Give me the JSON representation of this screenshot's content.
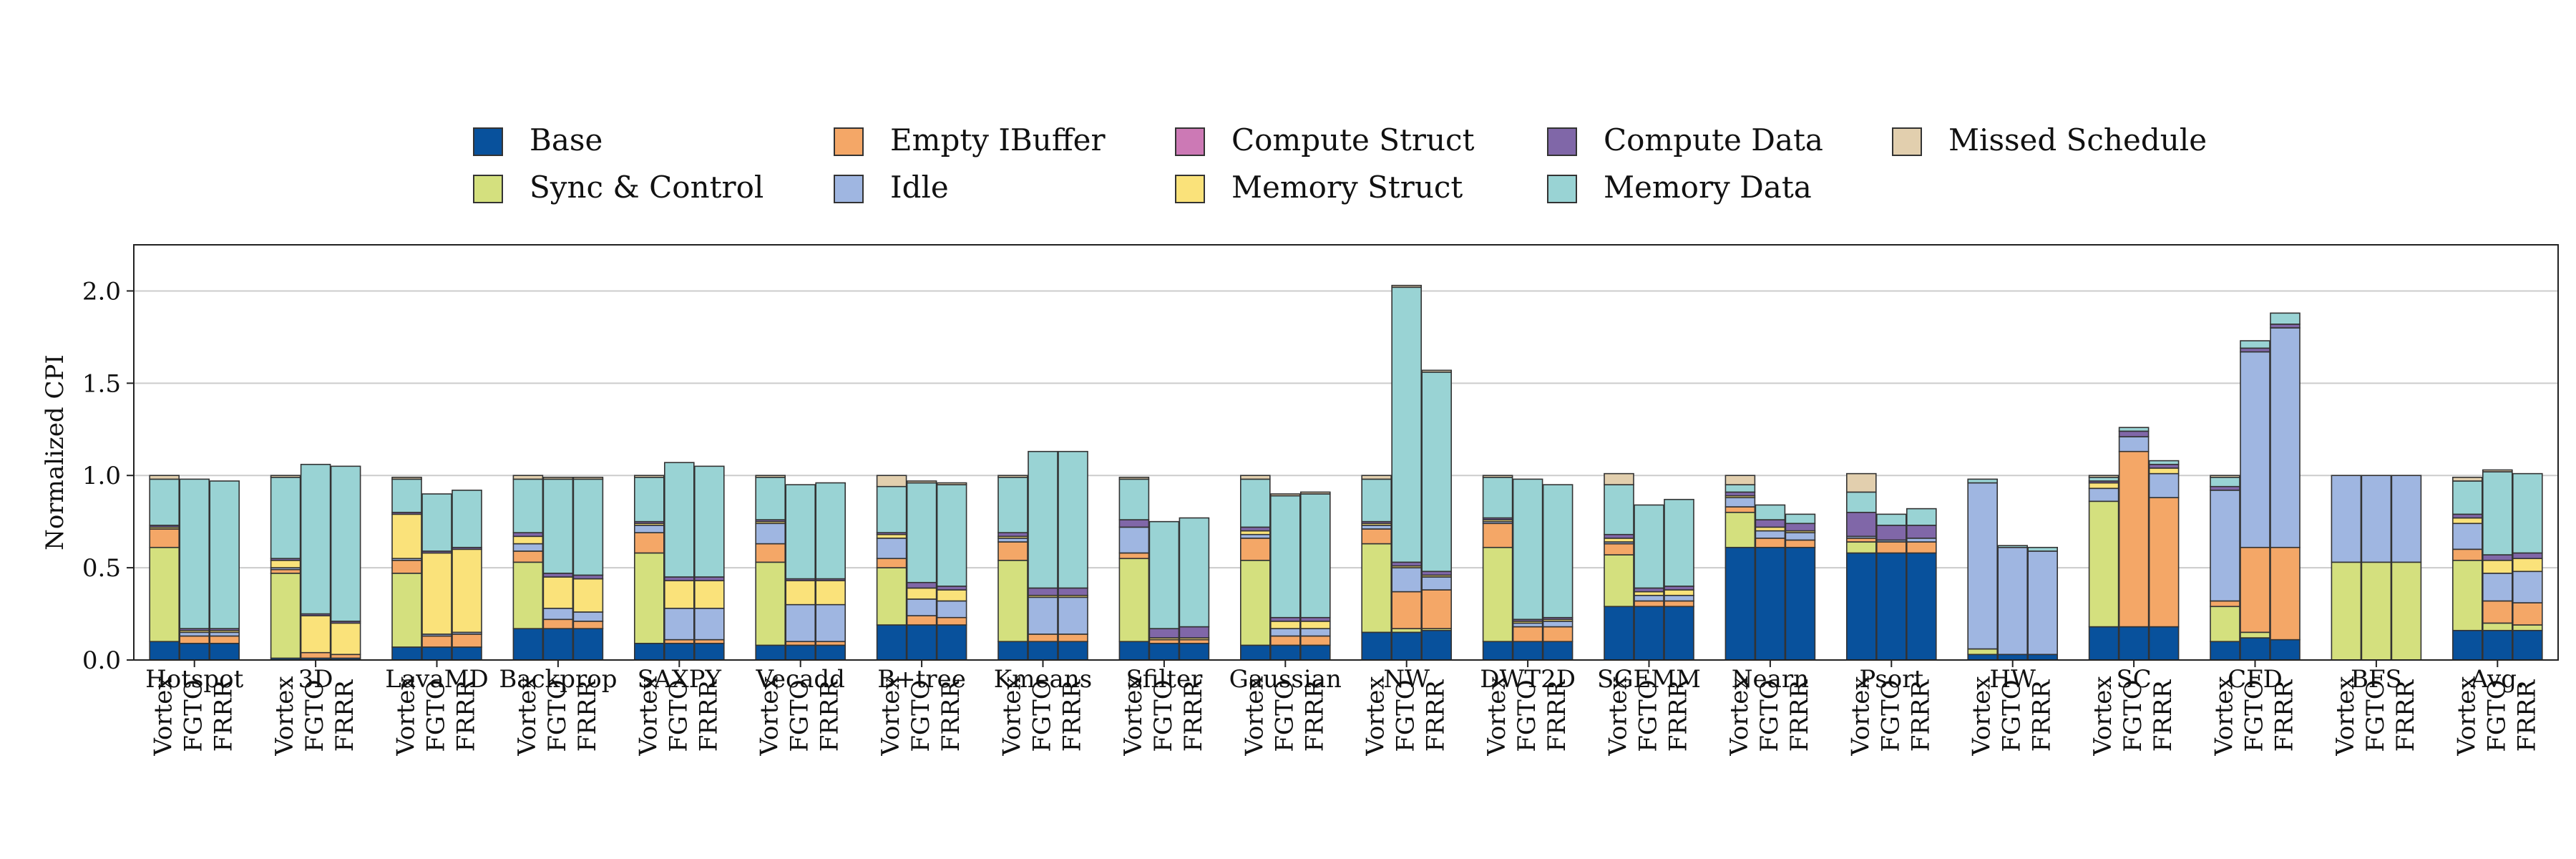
{
  "chart_data": {
    "type": "bar",
    "stacked": true,
    "ylabel": "Normalized CPI",
    "ylim": [
      0,
      2.25
    ],
    "yticks": [
      0.0,
      0.5,
      1.0,
      1.5,
      2.0
    ],
    "ytick_labels": [
      "0.0",
      "0.5",
      "1.0",
      "1.5",
      "2.0"
    ],
    "grid": "horizontal",
    "legend_position": "top",
    "schedulers": [
      "Vortex",
      "FGTO",
      "FRRR"
    ],
    "categories": [
      "Hotspot",
      "3D",
      "LavaMD",
      "Backprop",
      "SAXPY",
      "Vecadd",
      "B+tree",
      "Kmeans",
      "Sfilter",
      "Gaussian",
      "NW",
      "DWT2D",
      "SGEMM",
      "Nearn",
      "Psort",
      "HW",
      "SC",
      "CFD",
      "BFS",
      "Avg."
    ],
    "series_names": [
      "Base",
      "Sync & Control",
      "Empty IBuffer",
      "Idle",
      "Compute Struct",
      "Memory Struct",
      "Compute Data",
      "Memory Data",
      "Missed Schedule"
    ],
    "series_colors": [
      "#08519c",
      "#d4e07e",
      "#f4a767",
      "#9fb6e1",
      "#cc79b5",
      "#fae27a",
      "#8067a8",
      "#99d3d4",
      "#e2cfae"
    ],
    "legend": [
      {
        "name": "Base",
        "color": "#08519c"
      },
      {
        "name": "Empty IBuffer",
        "color": "#f4a767"
      },
      {
        "name": "Compute Struct",
        "color": "#cc79b5"
      },
      {
        "name": "Compute Data",
        "color": "#8067a8"
      },
      {
        "name": "Missed Schedule",
        "color": "#e2cfae"
      },
      {
        "name": "Sync & Control",
        "color": "#d4e07e"
      },
      {
        "name": "Idle",
        "color": "#9fb6e1"
      },
      {
        "name": "Memory Struct",
        "color": "#fae27a"
      },
      {
        "name": "Memory Data",
        "color": "#99d3d4"
      }
    ],
    "values": {
      "Hotspot": [
        [
          0.1,
          0.51,
          0.1,
          0,
          0,
          0.01,
          0.01,
          0.25,
          0.02
        ],
        [
          0.09,
          0,
          0.04,
          0.02,
          0,
          0.01,
          0.01,
          0.81,
          0
        ],
        [
          0.09,
          0,
          0.04,
          0.02,
          0,
          0.01,
          0.01,
          0.8,
          0
        ]
      ],
      "3D": [
        [
          0.01,
          0.46,
          0.02,
          0.01,
          0,
          0.04,
          0.01,
          0.44,
          0.01
        ],
        [
          0.01,
          0,
          0.03,
          0,
          0,
          0.2,
          0.01,
          0.81,
          0
        ],
        [
          0.01,
          0,
          0.02,
          0,
          0,
          0.17,
          0.01,
          0.84,
          0
        ]
      ],
      "LavaMD": [
        [
          0.07,
          0.4,
          0.07,
          0.01,
          0,
          0.24,
          0.01,
          0.18,
          0.01
        ],
        [
          0.07,
          0,
          0.06,
          0.01,
          0,
          0.44,
          0.01,
          0.31,
          0
        ],
        [
          0.07,
          0,
          0.07,
          0.01,
          0,
          0.45,
          0.01,
          0.31,
          0
        ]
      ],
      "Backprop": [
        [
          0.17,
          0.36,
          0.06,
          0.04,
          0,
          0.04,
          0.02,
          0.29,
          0.02
        ],
        [
          0.17,
          0,
          0.05,
          0.06,
          0,
          0.17,
          0.02,
          0.51,
          0.01
        ],
        [
          0.17,
          0,
          0.04,
          0.05,
          0,
          0.18,
          0.02,
          0.52,
          0.01
        ]
      ],
      "SAXPY": [
        [
          0.09,
          0.49,
          0.11,
          0.04,
          0,
          0.01,
          0.01,
          0.24,
          0.01
        ],
        [
          0.09,
          0,
          0.02,
          0.17,
          0,
          0.15,
          0.02,
          0.62,
          0
        ],
        [
          0.09,
          0,
          0.02,
          0.17,
          0,
          0.15,
          0.02,
          0.6,
          0
        ]
      ],
      "Vecadd": [
        [
          0.08,
          0.45,
          0.1,
          0.11,
          0,
          0.01,
          0.01,
          0.23,
          0.01
        ],
        [
          0.08,
          0,
          0.02,
          0.2,
          0,
          0.13,
          0.01,
          0.51,
          0
        ],
        [
          0.08,
          0,
          0.02,
          0.2,
          0,
          0.13,
          0.01,
          0.52,
          0
        ]
      ],
      "B+tree": [
        [
          0.19,
          0.31,
          0.05,
          0.11,
          0,
          0.02,
          0.01,
          0.25,
          0.06
        ],
        [
          0.19,
          0,
          0.05,
          0.09,
          0,
          0.06,
          0.03,
          0.54,
          0.01
        ],
        [
          0.19,
          0,
          0.04,
          0.09,
          0,
          0.06,
          0.02,
          0.55,
          0.01
        ]
      ],
      "Kmeans": [
        [
          0.1,
          0.44,
          0.1,
          0.02,
          0,
          0.01,
          0.02,
          0.3,
          0.01
        ],
        [
          0.1,
          0,
          0.04,
          0.2,
          0,
          0.01,
          0.04,
          0.74,
          0
        ],
        [
          0.1,
          0,
          0.04,
          0.2,
          0,
          0.01,
          0.04,
          0.74,
          0
        ]
      ],
      "Sfilter": [
        [
          0.1,
          0.45,
          0.03,
          0.14,
          0,
          0,
          0.04,
          0.22,
          0.01
        ],
        [
          0.09,
          0,
          0.02,
          0,
          0,
          0.01,
          0.05,
          0.58,
          0
        ],
        [
          0.09,
          0,
          0.02,
          0,
          0,
          0.01,
          0.06,
          0.59,
          0
        ]
      ],
      "Gaussian": [
        [
          0.08,
          0.46,
          0.12,
          0.02,
          0,
          0.02,
          0.02,
          0.26,
          0.02
        ],
        [
          0.08,
          0,
          0.05,
          0.04,
          0,
          0.04,
          0.02,
          0.66,
          0.01
        ],
        [
          0.08,
          0,
          0.05,
          0.04,
          0,
          0.04,
          0.02,
          0.67,
          0.01
        ]
      ],
      "NW": [
        [
          0.15,
          0.48,
          0.08,
          0.02,
          0,
          0.01,
          0.01,
          0.23,
          0.02
        ],
        [
          0.15,
          0.02,
          0.2,
          0.13,
          0,
          0.01,
          0.02,
          1.49,
          0.01
        ],
        [
          0.16,
          0.01,
          0.21,
          0.07,
          0,
          0.01,
          0.02,
          1.08,
          0.01
        ]
      ],
      "DWT2D": [
        [
          0.1,
          0.51,
          0.13,
          0.01,
          0,
          0.01,
          0.01,
          0.22,
          0.01
        ],
        [
          0.1,
          0,
          0.08,
          0.02,
          0,
          0.01,
          0.01,
          0.76,
          0
        ],
        [
          0.1,
          0,
          0.08,
          0.03,
          0,
          0.01,
          0.01,
          0.72,
          0
        ]
      ],
      "SGEMM": [
        [
          0.29,
          0.28,
          0.06,
          0.01,
          0,
          0.02,
          0.02,
          0.27,
          0.06
        ],
        [
          0.29,
          0,
          0.03,
          0.03,
          0,
          0.02,
          0.02,
          0.45,
          0
        ],
        [
          0.29,
          0,
          0.03,
          0.03,
          0,
          0.03,
          0.02,
          0.47,
          0
        ]
      ],
      "Nearn": [
        [
          0.61,
          0.19,
          0.03,
          0.05,
          0,
          0.01,
          0.02,
          0.04,
          0.05
        ],
        [
          0.61,
          0,
          0.05,
          0.04,
          0,
          0.02,
          0.04,
          0.08,
          0
        ],
        [
          0.61,
          0,
          0.04,
          0.04,
          0,
          0.01,
          0.04,
          0.05,
          0
        ]
      ],
      "Psort": [
        [
          0.58,
          0.06,
          0.02,
          0.01,
          0,
          0,
          0.13,
          0.11,
          0.1
        ],
        [
          0.58,
          0,
          0.06,
          0.01,
          0,
          0,
          0.08,
          0.06,
          0
        ],
        [
          0.58,
          0,
          0.06,
          0.02,
          0,
          0,
          0.07,
          0.09,
          0
        ]
      ],
      "HW": [
        [
          0.03,
          0.03,
          0,
          0.9,
          0,
          0,
          0,
          0.02,
          0
        ],
        [
          0.03,
          0,
          0,
          0.58,
          0,
          0,
          0,
          0.01,
          0
        ],
        [
          0.03,
          0,
          0,
          0.56,
          0,
          0,
          0,
          0.02,
          0
        ]
      ],
      "SC": [
        [
          0.18,
          0.68,
          0,
          0.07,
          0,
          0.03,
          0.01,
          0.02,
          0.01
        ],
        [
          0.18,
          0,
          0.95,
          0.08,
          0,
          0,
          0.03,
          0.02,
          0
        ],
        [
          0.18,
          0,
          0.7,
          0.13,
          0,
          0.03,
          0.02,
          0.02,
          0
        ]
      ],
      "CFD": [
        [
          0.1,
          0.19,
          0.03,
          0.6,
          0,
          0,
          0.02,
          0.05,
          0.01
        ],
        [
          0.12,
          0.03,
          0.46,
          1.06,
          0,
          0,
          0.02,
          0.04,
          0
        ],
        [
          0.11,
          0,
          0.5,
          1.19,
          0,
          0,
          0.02,
          0.06,
          0
        ]
      ],
      "BFS": [
        [
          0,
          0.53,
          0,
          0.47,
          0,
          0,
          0,
          0,
          0
        ],
        [
          0,
          0.53,
          0,
          0.47,
          0,
          0,
          0,
          0,
          0
        ],
        [
          0,
          0.53,
          0,
          0.47,
          0,
          0,
          0,
          0,
          0
        ]
      ],
      "Avg.": [
        [
          0.16,
          0.38,
          0.06,
          0.14,
          0,
          0.03,
          0.02,
          0.18,
          0.02
        ],
        [
          0.16,
          0.04,
          0.12,
          0.15,
          0,
          0.07,
          0.03,
          0.45,
          0.01
        ],
        [
          0.16,
          0.03,
          0.12,
          0.17,
          0,
          0.07,
          0.03,
          0.43,
          0
        ]
      ]
    }
  }
}
